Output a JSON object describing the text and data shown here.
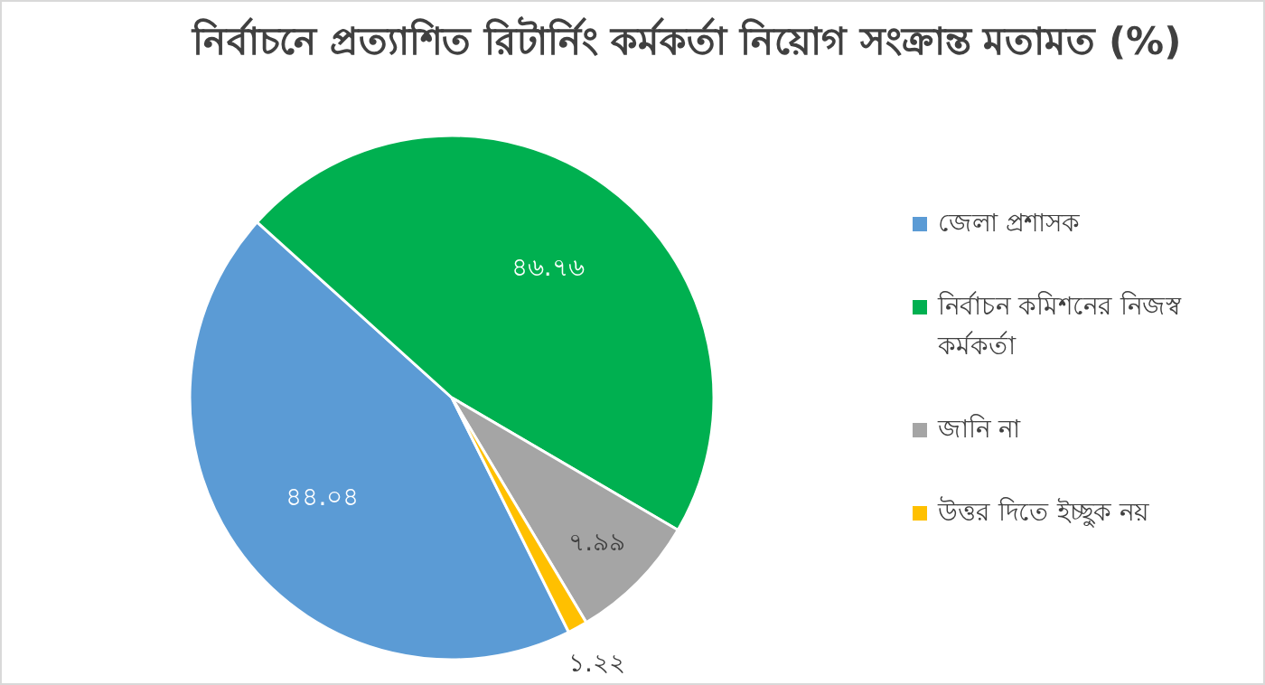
{
  "chart_data": {
    "type": "pie",
    "title": "নির্বাচনে প্রত্যাশিত রিটার্নিং কর্মকর্তা নিয়োগ সংক্রান্ত মতামত (%)",
    "categories": [
      "জেলা প্রশাসক",
      "নির্বাচন কমিশনের নিজস্ব কর্মকর্তা",
      "জানি না",
      "উত্তর দিতে ইচ্ছুক নয়"
    ],
    "values": [
      44.04,
      46.76,
      7.99,
      1.22
    ],
    "colors": [
      "#5b9bd5",
      "#00b050",
      "#a5a5a5",
      "#ffc000"
    ],
    "value_labels": [
      "৪৪.০৪",
      "৪৬.৭৬",
      "৭.৯৯",
      "১.২২"
    ],
    "legend": "right"
  }
}
